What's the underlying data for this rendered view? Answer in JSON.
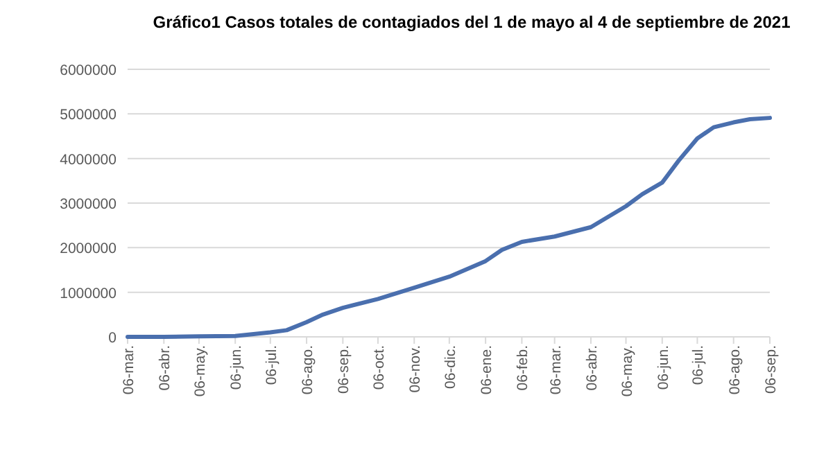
{
  "chart_data": {
    "type": "line",
    "title": "Gráfico1 Casos totales de contagiados del 1 de mayo al 4 de septiembre de 2021",
    "x": [
      "2020-03-06",
      "2020-04-06",
      "2020-05-06",
      "2020-06-06",
      "2020-07-06",
      "2020-07-20",
      "2020-08-06",
      "2020-08-20",
      "2020-09-06",
      "2020-10-06",
      "2020-11-06",
      "2020-12-06",
      "2021-01-06",
      "2021-01-20",
      "2021-02-06",
      "2021-03-06",
      "2021-04-06",
      "2021-05-06",
      "2021-05-20",
      "2021-06-06",
      "2021-06-20",
      "2021-07-06",
      "2021-07-20",
      "2021-08-06",
      "2021-08-20",
      "2021-09-06"
    ],
    "series": [
      {
        "color": "#4a6fae",
        "values": [
          0,
          0,
          10000,
          20000,
          100000,
          150000,
          330000,
          500000,
          650000,
          850000,
          1100000,
          1350000,
          1700000,
          1950000,
          2130000,
          2250000,
          2460000,
          2930000,
          3200000,
          3460000,
          3950000,
          4450000,
          4700000,
          4810000,
          4880000,
          4910000
        ]
      }
    ],
    "xlim": [
      "2020-03-06",
      "2021-09-06"
    ],
    "xticks": [
      {
        "value": "2020-03-06",
        "label": "06-mar."
      },
      {
        "value": "2020-04-06",
        "label": "06-abr."
      },
      {
        "value": "2020-05-06",
        "label": "06-may."
      },
      {
        "value": "2020-06-06",
        "label": "06-jun."
      },
      {
        "value": "2020-07-06",
        "label": "06-jul."
      },
      {
        "value": "2020-08-06",
        "label": "06-ago."
      },
      {
        "value": "2020-09-06",
        "label": "06-sep."
      },
      {
        "value": "2020-10-06",
        "label": "06-oct."
      },
      {
        "value": "2020-11-06",
        "label": "06-nov."
      },
      {
        "value": "2020-12-06",
        "label": "06-dic."
      },
      {
        "value": "2021-01-06",
        "label": "06-ene."
      },
      {
        "value": "2021-02-06",
        "label": "06-feb."
      },
      {
        "value": "2021-03-06",
        "label": "06-mar."
      },
      {
        "value": "2021-04-06",
        "label": "06-abr."
      },
      {
        "value": "2021-05-06",
        "label": "06-may."
      },
      {
        "value": "2021-06-06",
        "label": "06-jun."
      },
      {
        "value": "2021-07-06",
        "label": "06-jul."
      },
      {
        "value": "2021-08-06",
        "label": "06-ago."
      },
      {
        "value": "2021-09-06",
        "label": "06-sep."
      }
    ],
    "ylim": [
      0,
      6000000
    ],
    "yticks": [
      0,
      1000000,
      2000000,
      3000000,
      4000000,
      5000000,
      6000000
    ],
    "grid": "y",
    "marker": "none",
    "line_style": "solid"
  }
}
